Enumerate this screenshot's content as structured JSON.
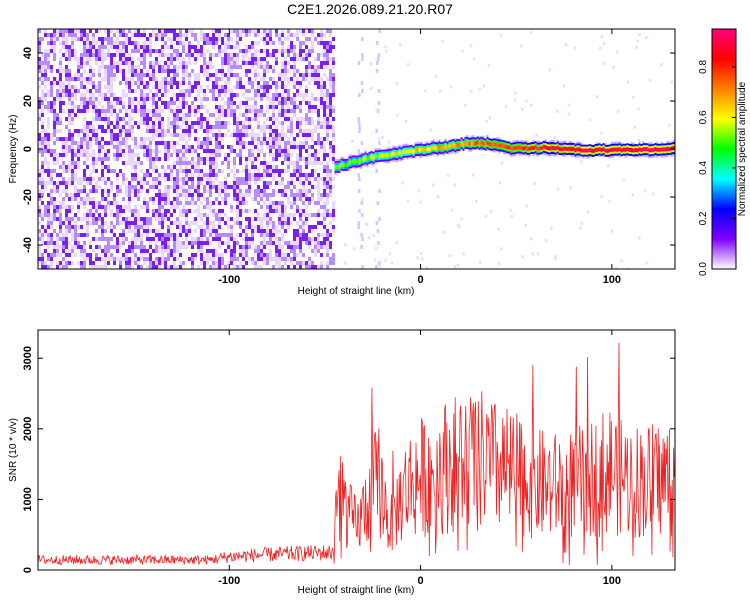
{
  "title": "C2E1.2026.089.21.20.R07",
  "chart_data": [
    {
      "type": "heatmap",
      "title": "C2E1.2026.089.21.20.R07",
      "xlabel": "Height of straight line (km)",
      "ylabel": "Frequency (Hz)",
      "xlim": [
        -200,
        133
      ],
      "ylim": [
        -50,
        50
      ],
      "xticks": [
        -100,
        0,
        100
      ],
      "yticks": [
        -40,
        -20,
        0,
        20,
        40
      ],
      "xtick_labels": [
        "-100",
        "0",
        "100"
      ],
      "ytick_labels": [
        "-40",
        "-20",
        "0",
        "20",
        "40"
      ],
      "noise_region_x": [
        -200,
        -45
      ],
      "signal_track": {
        "x": [
          -45,
          -35,
          -25,
          -15,
          -5,
          5,
          15,
          25,
          35,
          45,
          55,
          65,
          75,
          85,
          95,
          105,
          115,
          125,
          133
        ],
        "freq": [
          -7,
          -5,
          -3,
          -2,
          -0.5,
          0.5,
          1.5,
          3,
          2.5,
          1,
          0.5,
          1,
          0.5,
          0,
          0,
          0,
          0,
          0.5,
          0.5
        ]
      },
      "colorbar": {
        "label": "Normalized spectral amplitude",
        "range": [
          0.0,
          0.95
        ],
        "ticks": [
          0.0,
          0.2,
          0.4,
          0.6,
          0.8
        ],
        "tick_labels": [
          "0.0",
          "0.2",
          "0.4",
          "0.6",
          "0.8"
        ],
        "colors": [
          "#ffffff",
          "#7f00ff",
          "#0000ff",
          "#00ffff",
          "#00ff00",
          "#ffff00",
          "#ff8000",
          "#ff0000",
          "#ff0080"
        ]
      }
    },
    {
      "type": "line",
      "xlabel": "Height of straight line (km)",
      "ylabel": "SNR (10 * v/v)",
      "xlim": [
        -200,
        133
      ],
      "ylim": [
        0,
        3400
      ],
      "xticks": [
        -100,
        0,
        100
      ],
      "yticks": [
        0,
        1000,
        2000,
        3000
      ],
      "xtick_labels": [
        "-100",
        "0",
        "100"
      ],
      "ytick_labels": [
        "0",
        "1000",
        "2000",
        "3000"
      ],
      "series": [
        {
          "name": "SNR",
          "color": "#ee2222",
          "envelope_x": [
            -200,
            -110,
            -100,
            -80,
            -60,
            -46,
            -43,
            -38,
            -33,
            -28,
            -22,
            -16,
            -10,
            -5,
            0,
            10,
            20,
            30,
            40,
            50,
            60,
            70,
            80,
            90,
            100,
            110,
            120,
            133
          ],
          "envelope_y": [
            150,
            150,
            200,
            230,
            250,
            260,
            1400,
            900,
            700,
            1100,
            1500,
            700,
            1200,
            1400,
            1500,
            1650,
            1750,
            1800,
            1650,
            1550,
            1400,
            1350,
            1400,
            1500,
            1650,
            1450,
            1450,
            1500
          ]
        }
      ]
    }
  ]
}
